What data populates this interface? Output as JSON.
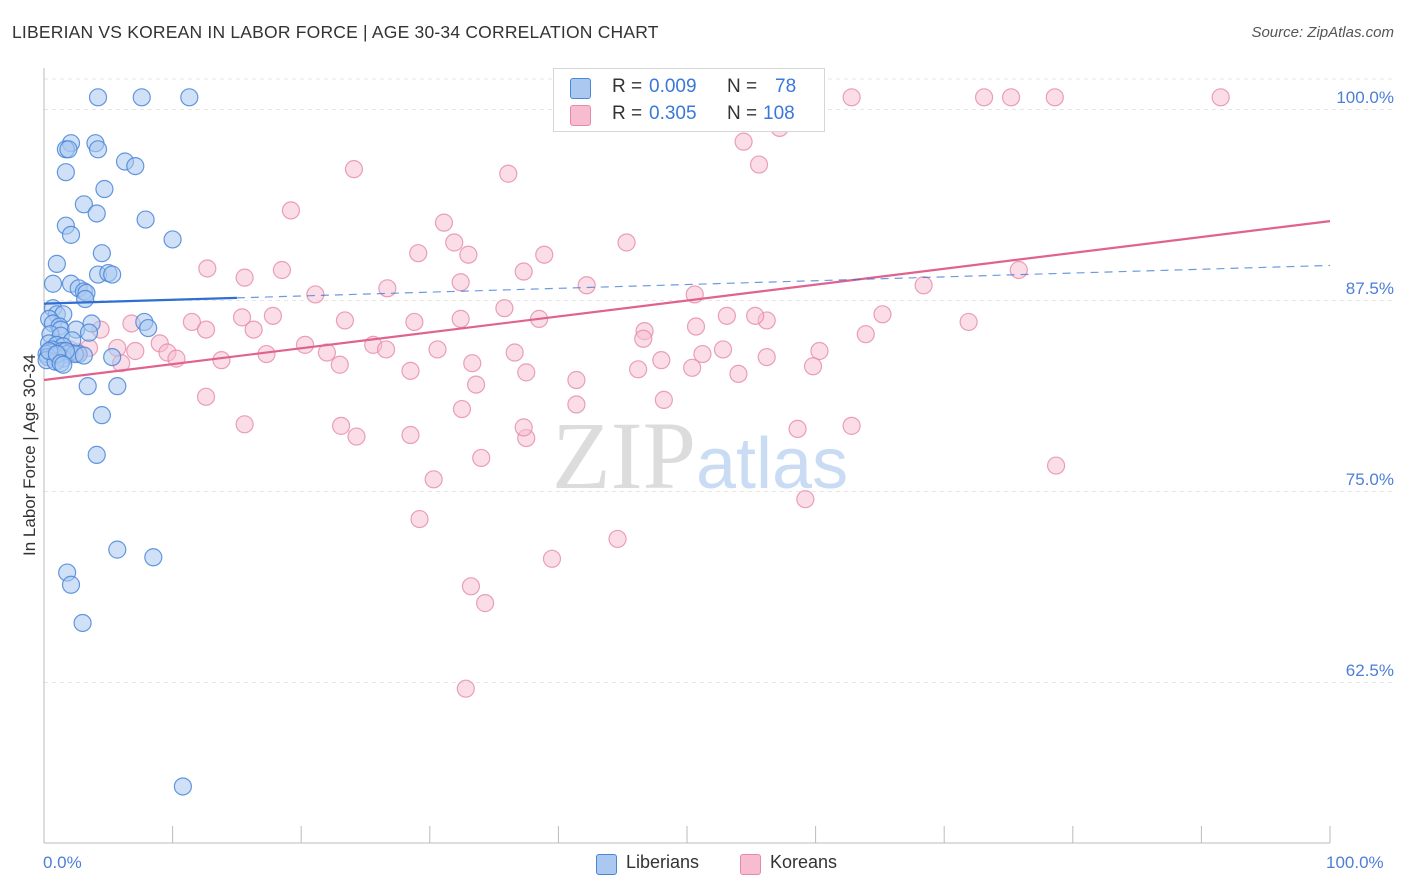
{
  "title": "LIBERIAN VS KOREAN IN LABOR FORCE | AGE 30-34 CORRELATION CHART",
  "source": "Source: ZipAtlas.com",
  "watermark": {
    "zip": "ZIP",
    "atlas": "atlas"
  },
  "colors": {
    "liberians_fill": "#aac8f0",
    "liberians_stroke": "#4a86d8",
    "liberians_line": "#2f6fd1",
    "koreans_fill": "#f7bcd0",
    "koreans_stroke": "#e58aa9",
    "koreans_line": "#e0628e",
    "tick_label": "#4d7fd6",
    "grid": "#e6e6e6"
  },
  "legend": {
    "row1": {
      "r_label": "R =",
      "r_value": "0.009",
      "n_label": "N =",
      "n_value": "78"
    },
    "row2": {
      "r_label": "R =",
      "r_value": "0.305",
      "n_label": "N =",
      "n_value": "108"
    }
  },
  "bottom_legend": {
    "liberians": "Liberians",
    "koreans": "Koreans"
  },
  "chart_data": {
    "type": "scatter",
    "title": "LIBERIAN VS KOREAN IN LABOR FORCE | AGE 30-34 CORRELATION CHART",
    "ylabel": "In Labor Force | Age 30-34",
    "xlabel": "",
    "xlim": [
      0,
      100
    ],
    "ylim": [
      51.5,
      101.5
    ],
    "y_ticks": [
      62.5,
      75.0,
      87.5,
      100.0
    ],
    "y_tick_labels": [
      "62.5%",
      "75.0%",
      "87.5%",
      "100.0%"
    ],
    "x_tick_labels": [
      "0.0%",
      "100.0%"
    ],
    "grid": true,
    "legend_placement": "top-center",
    "series": [
      {
        "name": "Liberians",
        "R": 0.009,
        "N": 78,
        "trend": {
          "x0": 0,
          "y0": 87.3,
          "x1": 100,
          "y1": 89.8,
          "solid_until": 15
        },
        "points": [
          [
            4.2,
            100.8
          ],
          [
            7.6,
            100.8
          ],
          [
            11.3,
            100.8
          ],
          [
            2.1,
            97.8
          ],
          [
            4.0,
            97.8
          ],
          [
            1.7,
            97.4
          ],
          [
            1.9,
            97.4
          ],
          [
            4.2,
            97.4
          ],
          [
            6.3,
            96.6
          ],
          [
            1.7,
            95.9
          ],
          [
            7.1,
            96.3
          ],
          [
            4.7,
            94.8
          ],
          [
            3.1,
            93.8
          ],
          [
            4.1,
            93.2
          ],
          [
            1.7,
            92.4
          ],
          [
            2.1,
            91.8
          ],
          [
            7.9,
            92.8
          ],
          [
            10.0,
            91.5
          ],
          [
            4.5,
            90.6
          ],
          [
            4.2,
            89.2
          ],
          [
            5.0,
            89.3
          ],
          [
            5.3,
            89.2
          ],
          [
            1.0,
            89.9
          ],
          [
            2.1,
            88.6
          ],
          [
            0.7,
            88.6
          ],
          [
            2.7,
            88.3
          ],
          [
            3.1,
            88.1
          ],
          [
            3.3,
            88.0
          ],
          [
            3.2,
            87.6
          ],
          [
            0.7,
            87.0
          ],
          [
            1.0,
            86.6
          ],
          [
            1.5,
            86.6
          ],
          [
            0.4,
            86.3
          ],
          [
            0.7,
            86.0
          ],
          [
            1.2,
            85.8
          ],
          [
            1.3,
            85.6
          ],
          [
            3.7,
            86.0
          ],
          [
            7.8,
            86.1
          ],
          [
            8.1,
            85.7
          ],
          [
            2.5,
            85.6
          ],
          [
            3.5,
            85.4
          ],
          [
            0.5,
            85.3
          ],
          [
            1.3,
            85.2
          ],
          [
            2.2,
            84.9
          ],
          [
            0.4,
            84.7
          ],
          [
            1.0,
            84.6
          ],
          [
            1.5,
            84.5
          ],
          [
            0.6,
            84.3
          ],
          [
            1.4,
            84.2
          ],
          [
            0.5,
            84.1
          ],
          [
            2.0,
            84.1
          ],
          [
            0.2,
            84.0
          ],
          [
            1.1,
            84.0
          ],
          [
            1.8,
            84.0
          ],
          [
            0.8,
            83.9
          ],
          [
            2.7,
            84.0
          ],
          [
            0.3,
            83.8
          ],
          [
            1.5,
            83.7
          ],
          [
            2.4,
            84.0
          ],
          [
            0.2,
            83.6
          ],
          [
            0.9,
            83.5
          ],
          [
            1.7,
            84.2
          ],
          [
            0.4,
            84.2
          ],
          [
            1.0,
            84.0
          ],
          [
            3.1,
            83.9
          ],
          [
            5.3,
            83.8
          ],
          [
            1.3,
            83.4
          ],
          [
            1.5,
            83.3
          ],
          [
            3.4,
            81.9
          ],
          [
            5.7,
            81.9
          ],
          [
            4.5,
            80.0
          ],
          [
            4.1,
            77.4
          ],
          [
            5.7,
            71.2
          ],
          [
            8.5,
            70.7
          ],
          [
            1.8,
            69.7
          ],
          [
            2.1,
            68.9
          ],
          [
            3.0,
            66.4
          ],
          [
            10.8,
            55.7
          ]
        ]
      },
      {
        "name": "Koreans",
        "R": 0.305,
        "N": 108,
        "trend": {
          "x0": 0,
          "y0": 82.3,
          "x1": 100,
          "y1": 92.7
        },
        "points": [
          [
            40.3,
            100.8
          ],
          [
            48.0,
            100.8
          ],
          [
            58.0,
            100.8
          ],
          [
            62.8,
            100.8
          ],
          [
            78.6,
            100.8
          ],
          [
            73.1,
            100.8
          ],
          [
            75.2,
            100.8
          ],
          [
            91.5,
            100.8
          ],
          [
            53.0,
            99.2
          ],
          [
            57.2,
            98.8
          ],
          [
            54.4,
            97.9
          ],
          [
            55.6,
            96.4
          ],
          [
            24.1,
            96.1
          ],
          [
            36.1,
            95.8
          ],
          [
            19.2,
            93.4
          ],
          [
            31.1,
            92.6
          ],
          [
            31.9,
            91.3
          ],
          [
            45.3,
            91.3
          ],
          [
            29.1,
            90.6
          ],
          [
            33.0,
            90.5
          ],
          [
            38.9,
            90.5
          ],
          [
            12.7,
            89.6
          ],
          [
            18.5,
            89.5
          ],
          [
            37.3,
            89.4
          ],
          [
            15.6,
            89.0
          ],
          [
            32.4,
            88.7
          ],
          [
            42.2,
            88.5
          ],
          [
            26.7,
            88.3
          ],
          [
            21.1,
            87.9
          ],
          [
            50.6,
            87.9
          ],
          [
            35.8,
            87.0
          ],
          [
            17.8,
            86.5
          ],
          [
            11.5,
            86.1
          ],
          [
            15.4,
            86.4
          ],
          [
            23.4,
            86.2
          ],
          [
            6.8,
            86.0
          ],
          [
            28.8,
            86.1
          ],
          [
            32.4,
            86.3
          ],
          [
            38.5,
            86.3
          ],
          [
            56.2,
            86.2
          ],
          [
            46.7,
            85.5
          ],
          [
            50.7,
            85.8
          ],
          [
            46.6,
            85.0
          ],
          [
            25.6,
            84.6
          ],
          [
            20.3,
            84.6
          ],
          [
            9.0,
            84.7
          ],
          [
            16.3,
            85.6
          ],
          [
            12.6,
            85.6
          ],
          [
            4.4,
            85.6
          ],
          [
            3.5,
            84.4
          ],
          [
            2.0,
            84.3
          ],
          [
            2.6,
            84.1
          ],
          [
            1.2,
            84.3
          ],
          [
            5.7,
            84.4
          ],
          [
            9.6,
            84.1
          ],
          [
            17.3,
            84.0
          ],
          [
            26.6,
            84.3
          ],
          [
            22.0,
            84.1
          ],
          [
            30.6,
            84.3
          ],
          [
            36.6,
            84.1
          ],
          [
            7.1,
            84.2
          ],
          [
            6.0,
            83.4
          ],
          [
            10.3,
            83.7
          ],
          [
            13.8,
            83.6
          ],
          [
            23.0,
            83.3
          ],
          [
            33.3,
            83.4
          ],
          [
            28.5,
            82.9
          ],
          [
            48.0,
            83.6
          ],
          [
            46.2,
            83.0
          ],
          [
            50.4,
            83.1
          ],
          [
            33.6,
            82.0
          ],
          [
            37.5,
            82.8
          ],
          [
            41.4,
            82.3
          ],
          [
            54.0,
            82.7
          ],
          [
            52.8,
            84.3
          ],
          [
            51.2,
            84.0
          ],
          [
            60.3,
            84.2
          ],
          [
            56.2,
            83.8
          ],
          [
            59.8,
            83.2
          ],
          [
            71.9,
            86.1
          ],
          [
            55.3,
            86.5
          ],
          [
            65.2,
            86.6
          ],
          [
            12.6,
            81.2
          ],
          [
            32.5,
            80.4
          ],
          [
            28.5,
            78.7
          ],
          [
            24.3,
            78.6
          ],
          [
            37.5,
            78.5
          ],
          [
            41.4,
            80.7
          ],
          [
            37.3,
            79.2
          ],
          [
            15.6,
            79.4
          ],
          [
            34.0,
            77.2
          ],
          [
            23.1,
            79.3
          ],
          [
            62.8,
            79.3
          ],
          [
            58.6,
            79.1
          ],
          [
            78.7,
            76.7
          ],
          [
            59.2,
            74.5
          ],
          [
            48.2,
            81.0
          ],
          [
            53.1,
            86.5
          ],
          [
            63.9,
            85.3
          ],
          [
            68.4,
            88.5
          ],
          [
            75.8,
            89.5
          ],
          [
            30.3,
            75.8
          ],
          [
            29.2,
            73.2
          ],
          [
            44.6,
            71.9
          ],
          [
            33.2,
            68.8
          ],
          [
            34.3,
            67.7
          ],
          [
            39.5,
            70.6
          ],
          [
            32.8,
            62.1
          ]
        ]
      }
    ]
  }
}
